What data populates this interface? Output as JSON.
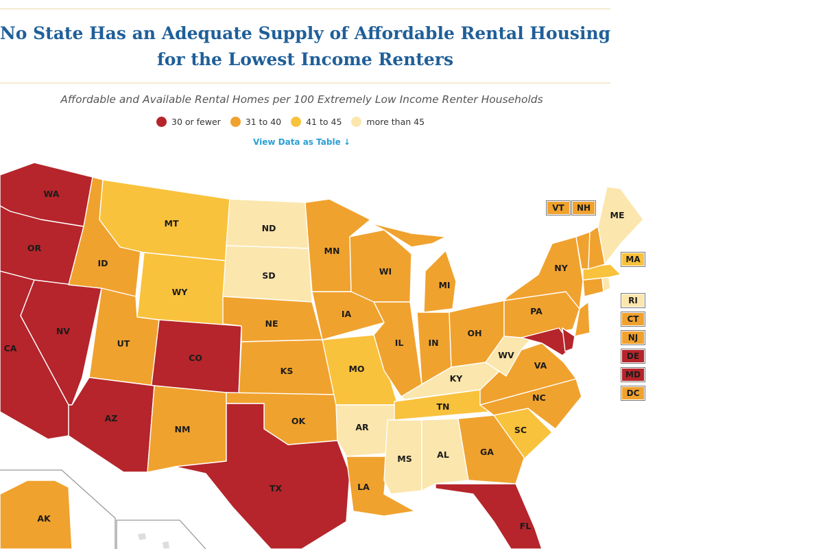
{
  "title": "No State Has an Adequate Supply of Affordable Rental Housing for the Lowest Income Renters",
  "subtitle": "Affordable and Available Rental Homes per 100 Extremely Low Income Renter Households",
  "legend": [
    {
      "label": "30 or fewer",
      "color": "#b5252b"
    },
    {
      "label": "31 to 40",
      "color": "#f0a22e"
    },
    {
      "label": "41 to 45",
      "color": "#f9c23c"
    },
    {
      "label": "more than 45",
      "color": "#fbe6ad"
    }
  ],
  "view_table_link": "View Data as Table ↓",
  "state_categories": {
    "WA": 0,
    "OR": 0,
    "CA": 0,
    "NV": 0,
    "AZ": 0,
    "CO": 0,
    "TX": 0,
    "FL": 0,
    "DE": 0,
    "MD": 0,
    "ID": 1,
    "UT": 1,
    "NM": 1,
    "NE": 1,
    "KS": 1,
    "OK": 1,
    "MN": 1,
    "IA": 1,
    "WI": 1,
    "IL": 1,
    "IN": 1,
    "MI": 1,
    "OH": 1,
    "PA": 1,
    "NY": 1,
    "VA": 1,
    "NC": 1,
    "GA": 1,
    "LA": 1,
    "VT": 1,
    "NH": 1,
    "CT": 1,
    "NJ": 1,
    "DC": 1,
    "AK": 1,
    "MT": 2,
    "WY": 2,
    "MO": 2,
    "TN": 2,
    "SC": 2,
    "MA": 2,
    "ND": 3,
    "SD": 3,
    "AR": 3,
    "MS": 3,
    "AL": 3,
    "KY": 3,
    "WV": 3,
    "ME": 3,
    "RI": 3
  },
  "callouts": [
    "VT",
    "NH",
    "MA",
    "RI",
    "CT",
    "NJ",
    "DE",
    "MD",
    "DC"
  ]
}
